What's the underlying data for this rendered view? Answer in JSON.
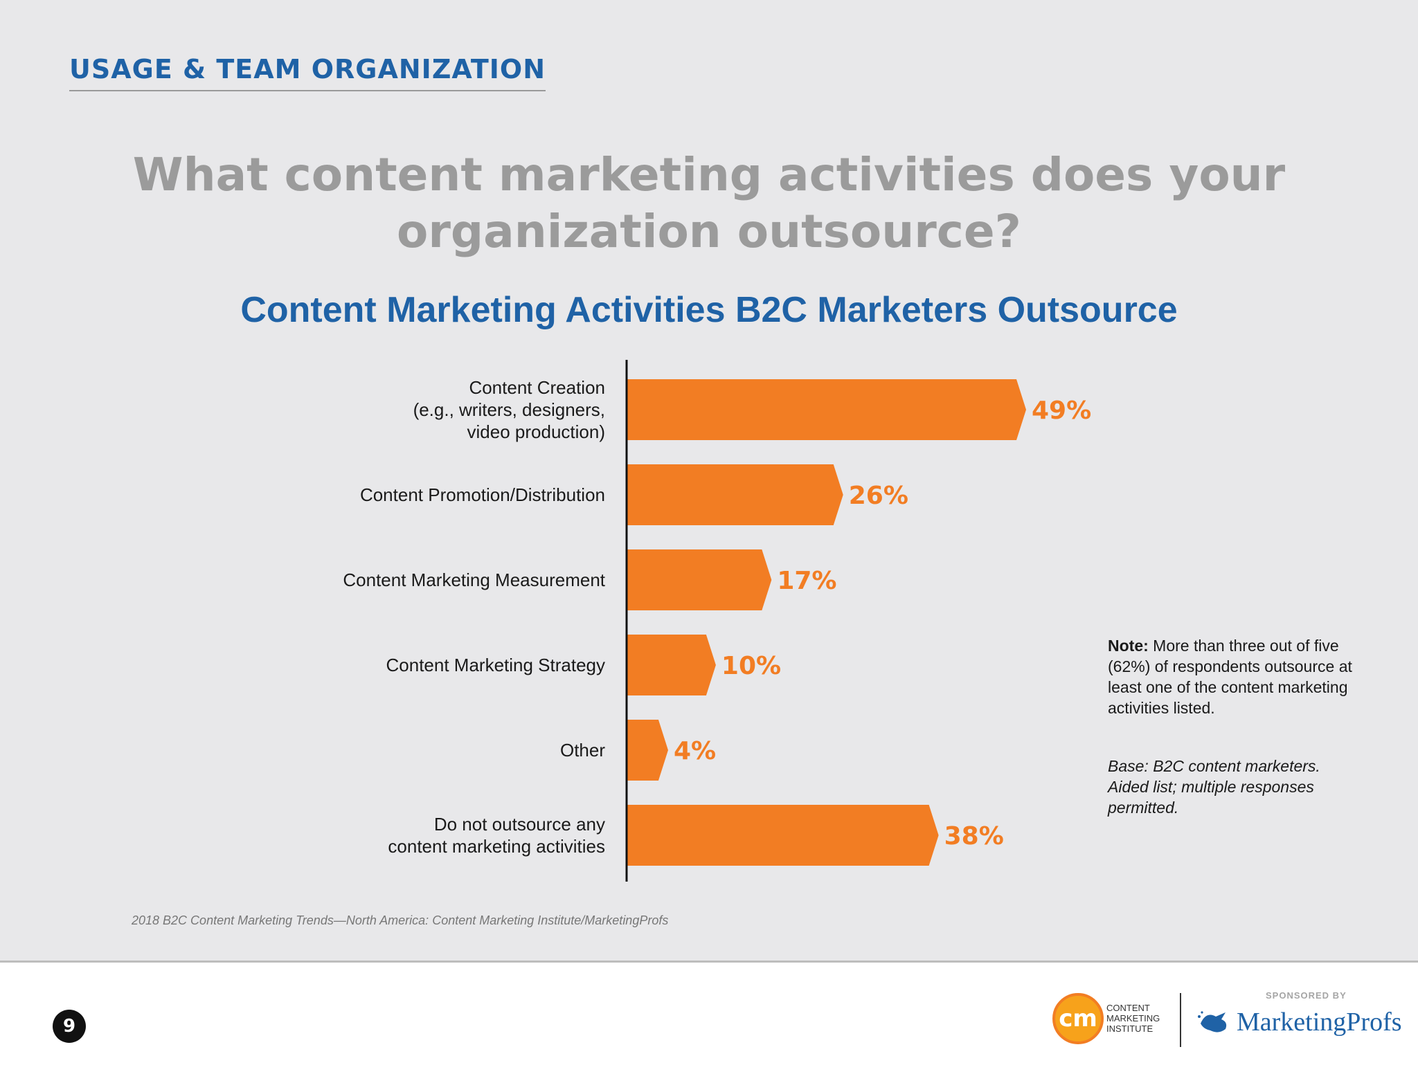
{
  "header": {
    "section_title": "USAGE & TEAM ORGANIZATION"
  },
  "question": {
    "line1": "What content marketing activities does your",
    "line2": "organization outsource?"
  },
  "chart_data": {
    "type": "bar",
    "orientation": "horizontal",
    "title": "Content Marketing Activities B2C Marketers Outsource",
    "categories": [
      "Content Creation (e.g., writers, designers, video production)",
      "Content Promotion/Distribution",
      "Content Marketing Measurement",
      "Content Marketing Strategy",
      "Other",
      "Do not outsource any content marketing activities"
    ],
    "category_lines": [
      [
        "Content Creation",
        "(e.g., writers, designers,",
        "video production)"
      ],
      [
        "Content Promotion/Distribution"
      ],
      [
        "Content Marketing Measurement"
      ],
      [
        "Content Marketing Strategy"
      ],
      [
        "Other"
      ],
      [
        "Do not outsource any",
        "content marketing activities"
      ]
    ],
    "values": [
      49,
      26,
      17,
      10,
      4,
      38
    ],
    "value_labels": [
      "49%",
      "26%",
      "17%",
      "10%",
      "4%",
      "38%"
    ],
    "unit": "%",
    "xlim": [
      0,
      100
    ],
    "bar_color": "#f27d23",
    "grid": false
  },
  "note": {
    "label": "Note:",
    "text": "More than three out of five (62%) of respondents outsource at least one of the content marketing activities listed."
  },
  "base": {
    "text": "Base: B2C content marketers. Aided list; multiple responses permitted."
  },
  "source": {
    "text": "2018 B2C Content Marketing Trends—North America: Content Marketing Institute/MarketingProfs"
  },
  "footer": {
    "page_number": "9",
    "cmi_logo_text": "cm",
    "cmi_name_lines": [
      "CONTENT",
      "MARKETING",
      "INSTITUTE"
    ],
    "sponsored_by": "SPONSORED BY",
    "sponsor_name": "MarketingProfs",
    "accent_colors": {
      "cmi_orange": "#f27d23",
      "cmi_yellow": "#f7a21b",
      "brand_blue": "#1f62a6"
    }
  }
}
